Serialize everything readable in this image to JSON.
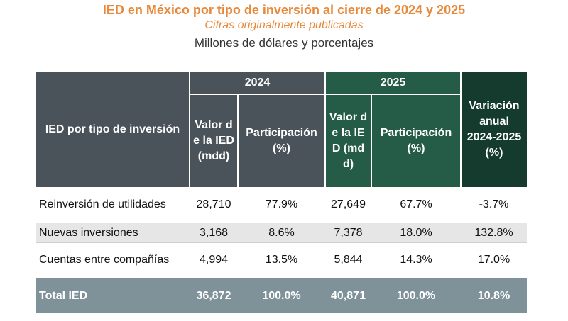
{
  "header": {
    "title": "IED en México por tipo de inversión al cierre de 2024 y 2025",
    "subtitle": "Cifras originalmente publicadas",
    "units": "Millones de dólares y porcentajes"
  },
  "table": {
    "col_main": "IED por tipo de inversión",
    "year_2024": "2024",
    "year_2025": "2025",
    "col_value": "Valor de la IED (mdd)",
    "col_share": "Participación (%)",
    "col_variation": "Variación anual 2024-2025 (%)",
    "rows": [
      {
        "label": "Reinversión de utilidades",
        "v2024": "28,710",
        "p2024": "77.9%",
        "v2025": "27,649",
        "p2025": "67.7%",
        "var": "-3.7%"
      },
      {
        "label": "Nuevas inversiones",
        "v2024": "3,168",
        "p2024": "8.6%",
        "v2025": "7,378",
        "p2025": "18.0%",
        "var": "132.8%"
      },
      {
        "label": "Cuentas entre compañías",
        "v2024": "4,994",
        "p2024": "13.5%",
        "v2025": "5,844",
        "p2025": "14.3%",
        "var": "17.0%"
      }
    ],
    "total": {
      "label": "Total IED",
      "v2024": "36,872",
      "p2024": "100.0%",
      "v2025": "40,871",
      "p2025": "100.0%",
      "var": "10.8%"
    }
  },
  "colors": {
    "title": "#e8883a",
    "header_grey": "#4a525a",
    "header_green": "#255c48",
    "header_dark_green": "#143b2e",
    "total_row": "#7f9299",
    "alt_row": "#e6e6e6"
  }
}
